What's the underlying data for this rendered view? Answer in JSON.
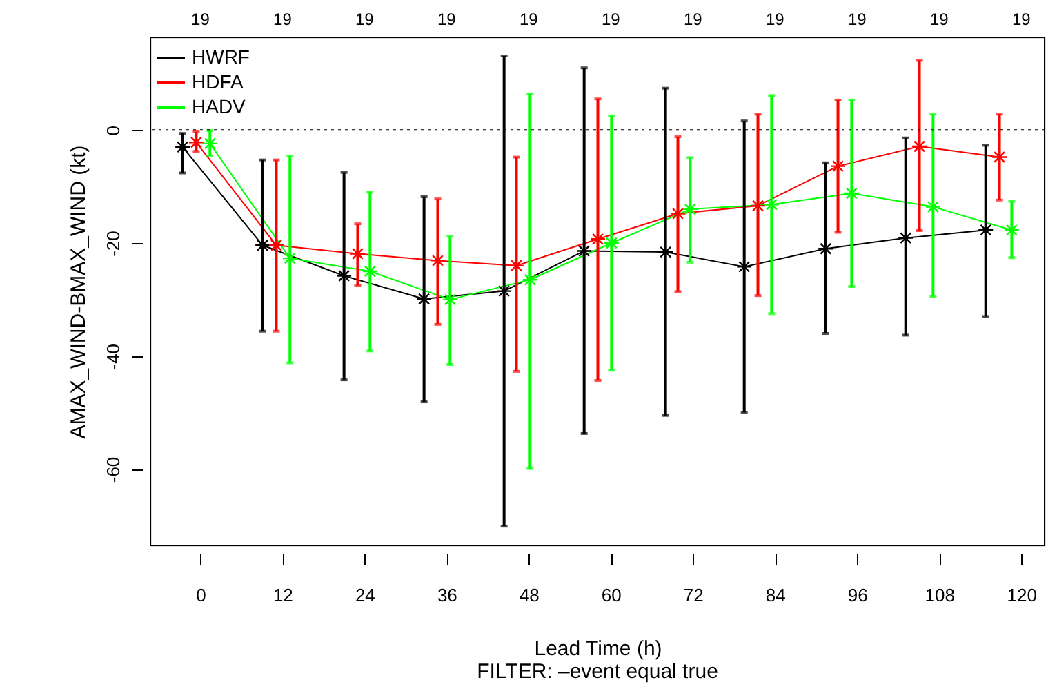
{
  "chart_data": {
    "type": "line",
    "xlabel": "Lead Time (h)",
    "ylabel": "AMAX_WIND-BMAX_WIND (kt)",
    "annotations": [
      "19",
      "19",
      "19",
      "19",
      "19",
      "19",
      "19",
      "19",
      "19",
      "19",
      "19",
      "FILTER:  –event  equal true"
    ],
    "xlim": [
      -7.3,
      123.4
    ],
    "xticks": [
      0,
      12,
      24,
      36,
      48,
      60,
      72,
      84,
      96,
      108,
      120
    ],
    "ylim": [
      -73.5,
      16.4
    ],
    "yticks": [
      -60,
      -40,
      -20,
      0
    ],
    "grid": false,
    "legend": "top left",
    "marker": "cross",
    "line_style": "solid",
    "ref_lines": [
      {
        "axis": "y",
        "value": 0,
        "line_style": "dotted",
        "color": "#000000"
      }
    ],
    "series": [
      {
        "name": "HWRF",
        "color": "#000000",
        "x": [
          -2.6,
          9.1,
          21.0,
          32.7,
          44.4,
          56.1,
          68.0,
          79.5,
          91.4,
          103.1,
          114.8
        ],
        "values": [
          -3.0,
          -20.4,
          -25.8,
          -29.9,
          -28.5,
          -21.4,
          -21.6,
          -24.2,
          -21.0,
          -19.1,
          -17.7
        ],
        "errors": [
          [
            -7.6,
            -0.6
          ],
          [
            -35.6,
            -5.3
          ],
          [
            -44.2,
            -7.5
          ],
          [
            -48.1,
            -11.8
          ],
          [
            -70.1,
            13.1
          ],
          [
            -53.7,
            11.0
          ],
          [
            -50.5,
            7.4
          ],
          [
            -50.0,
            1.6
          ],
          [
            -36.0,
            -5.8
          ],
          [
            -36.3,
            -1.4
          ],
          [
            -33.0,
            -2.7
          ]
        ]
      },
      {
        "name": "HDFA",
        "color": "#ff0000",
        "x": [
          -0.6,
          11.1,
          23.0,
          34.7,
          46.2,
          58.1,
          69.8,
          81.5,
          93.2,
          105.1,
          116.8
        ],
        "values": [
          -2.2,
          -20.4,
          -21.9,
          -23.1,
          -24.0,
          -19.3,
          -14.8,
          -13.4,
          -6.4,
          -2.9,
          -4.8
        ],
        "errors": [
          [
            -3.8,
            -0.3
          ],
          [
            -35.6,
            -5.3
          ],
          [
            -27.5,
            -16.6
          ],
          [
            -34.4,
            -12.2
          ],
          [
            -42.7,
            -4.8
          ],
          [
            -44.3,
            5.5
          ],
          [
            -28.6,
            -1.2
          ],
          [
            -29.3,
            2.8
          ],
          [
            -18.1,
            5.3
          ],
          [
            -17.8,
            12.3
          ],
          [
            -12.4,
            2.8
          ]
        ]
      },
      {
        "name": "HADV",
        "color": "#00ff00",
        "x": [
          1.4,
          13.1,
          24.8,
          36.5,
          48.2,
          60.1,
          71.6,
          83.5,
          95.2,
          107.1,
          118.6
        ],
        "values": [
          -2.4,
          -22.7,
          -25.0,
          -30.0,
          -26.5,
          -20.0,
          -14.0,
          -13.2,
          -11.2,
          -13.6,
          -17.7
        ],
        "errors": [
          [
            -4.6,
            -0.1
          ],
          [
            -41.2,
            -4.6
          ],
          [
            -39.1,
            -11.0
          ],
          [
            -41.5,
            -18.8
          ],
          [
            -59.9,
            6.4
          ],
          [
            -42.5,
            2.5
          ],
          [
            -23.4,
            -4.9
          ],
          [
            -32.5,
            6.1
          ],
          [
            -27.7,
            5.3
          ],
          [
            -29.5,
            2.8
          ],
          [
            -22.6,
            -12.6
          ]
        ]
      }
    ]
  }
}
